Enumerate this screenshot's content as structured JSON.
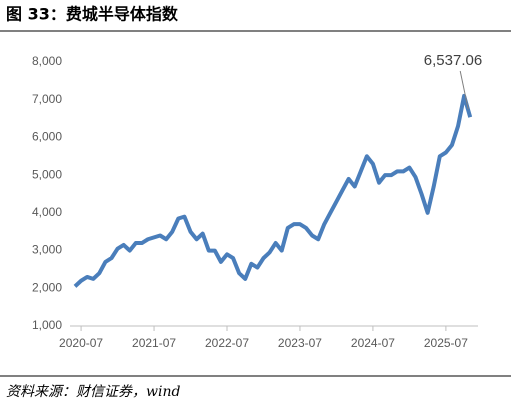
{
  "chart_data": {
    "type": "line",
    "title": "图 33：费城半导体指数",
    "source": "资料来源：财信证券，wind",
    "categories": [
      null,
      "2020-07",
      null,
      null,
      null,
      null,
      null,
      null,
      null,
      null,
      null,
      null,
      null,
      "2021-07",
      null,
      null,
      null,
      null,
      null,
      null,
      null,
      null,
      null,
      null,
      null,
      "2022-07",
      null,
      null,
      null,
      null,
      null,
      null,
      null,
      null,
      null,
      null,
      null,
      "2023-07",
      null,
      null,
      null,
      null,
      null,
      null,
      null,
      null,
      null,
      null,
      null,
      "2024-07",
      null,
      null,
      null,
      null,
      null,
      null,
      null,
      null,
      null,
      null,
      null,
      "2025-07",
      null,
      null,
      null,
      null
    ],
    "series": [
      {
        "color": "#4a7ebb",
        "values": [
          2050,
          2200,
          2300,
          2250,
          2400,
          2700,
          2800,
          3050,
          3150,
          3000,
          3200,
          3200,
          3300,
          3350,
          3400,
          3300,
          3500,
          3850,
          3900,
          3500,
          3300,
          3450,
          3000,
          3000,
          2700,
          2900,
          2800,
          2400,
          2250,
          2650,
          2550,
          2800,
          2950,
          3200,
          3000,
          3600,
          3700,
          3700,
          3600,
          3400,
          3300,
          3700,
          4000,
          4300,
          4600,
          4900,
          4700,
          5100,
          5500,
          5300,
          4800,
          5000,
          5000,
          5100,
          5100,
          5200,
          4950,
          4500,
          4000,
          4700,
          5500,
          5600,
          5800,
          6300,
          7100,
          6537.06
        ],
        "value_labels": [
          null,
          null,
          null,
          null,
          null,
          null,
          null,
          null,
          null,
          null,
          null,
          null,
          null,
          null,
          null,
          null,
          null,
          null,
          null,
          null,
          null,
          null,
          null,
          null,
          null,
          null,
          null,
          null,
          null,
          null,
          null,
          null,
          null,
          null,
          null,
          null,
          null,
          null,
          null,
          null,
          null,
          null,
          null,
          null,
          null,
          null,
          null,
          null,
          null,
          null,
          null,
          null,
          null,
          null,
          null,
          null,
          null,
          null,
          null,
          null,
          null,
          null,
          null,
          null,
          null,
          "6,537.06"
        ]
      }
    ],
    "ylim": [
      1000,
      8000
    ],
    "yticks": [
      {
        "value": 1000,
        "label": "1,000"
      },
      {
        "value": 2000,
        "label": "2,000"
      },
      {
        "value": 3000,
        "label": "3,000"
      },
      {
        "value": 4000,
        "label": "4,000"
      },
      {
        "value": 5000,
        "label": "5,000"
      },
      {
        "value": 6000,
        "label": "6,000"
      },
      {
        "value": 7000,
        "label": "7,000"
      },
      {
        "value": 8000,
        "label": "8,000"
      }
    ],
    "grid": false
  }
}
